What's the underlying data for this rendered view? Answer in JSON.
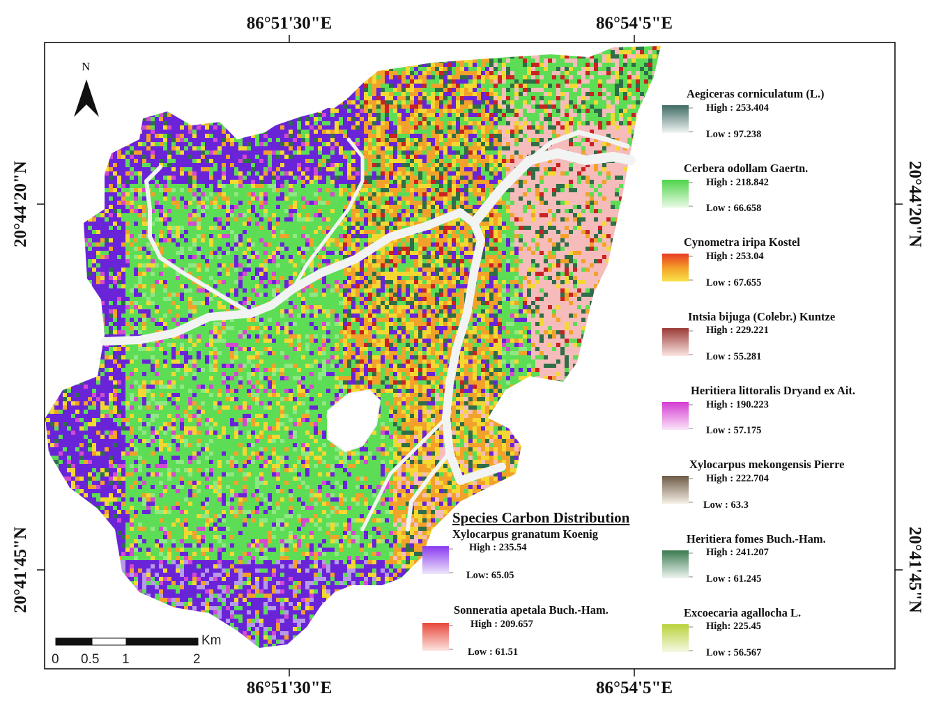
{
  "map": {
    "colors": {
      "purple": "#6a24d8",
      "green": "#5ddc55",
      "orange": "#f2a22a",
      "yellow": "#f4d832",
      "pink": "#f6bcbc",
      "darkgreen": "#2f6e48",
      "red": "#c82222",
      "magenta": "#d44ad0",
      "river": "#f2f4f4"
    }
  },
  "coordinates": {
    "top_left": "86°51'30\"E",
    "top_right": "86°54'5\"E",
    "bottom_left": "86°51'30\"E",
    "bottom_right": "86°54'5\"E",
    "left_top": "20°44'20\"N",
    "left_bottom": "20°41'45\"N",
    "right_top": "20°44'20\"N",
    "right_bottom": "20°41'45\"N"
  },
  "north_arrow": {
    "label": "N",
    "icon": "north-arrow-icon"
  },
  "scale_bar": {
    "unit": "Km",
    "ticks": [
      "0",
      "0.5",
      "1",
      "2"
    ]
  },
  "legend": {
    "title": "Species Carbon Distribution",
    "species": [
      {
        "name": "Aegiceras corniculatum (L.)",
        "high": "High : 253.404",
        "low": "Low : 97.238",
        "color": "#3f6b66"
      },
      {
        "name": "Cerbera odollam Gaertn.",
        "high": "High : 218.842",
        "low": "Low : 66.658",
        "color": "#4fd44a"
      },
      {
        "name": "Cynometra iripa Kostel",
        "high": "High : 253.04",
        "low": "Low : 67.655",
        "color": "#e83a22"
      },
      {
        "name": "Intsia bijuga (Colebr.) Kuntze",
        "high": "High : 229.221",
        "low": "Low : 55.281",
        "color": "#9a3a36"
      },
      {
        "name": "Heritiera littoralis Dryand ex Ait.",
        "high": "High : 190.223",
        "low": "Low : 57.175",
        "color": "#d43cd2"
      },
      {
        "name": "Xylocarpus mekongensis Pierre",
        "high": "High : 222.704",
        "low": "Low : 63.3",
        "color": "#6e5a46"
      },
      {
        "name": "Heritiera fomes Buch.-Ham.",
        "high": "High : 241.207",
        "low": "Low : 61.245",
        "color": "#3a7a50"
      },
      {
        "name": "Excoecaria agallocha L.",
        "high": "High:  225.45",
        "low": "Low : 56.567",
        "color": "#b8d23a"
      },
      {
        "name": "Xylocarpus granatum Koenig",
        "high": "High : 235.54",
        "low": "Low: 65.05",
        "color": "#8a3af0"
      },
      {
        "name": "Sonneratia apetala Buch.-Ham.",
        "high": "High : 209.657",
        "low": "Low : 61.51",
        "color": "#e8473a"
      }
    ]
  }
}
